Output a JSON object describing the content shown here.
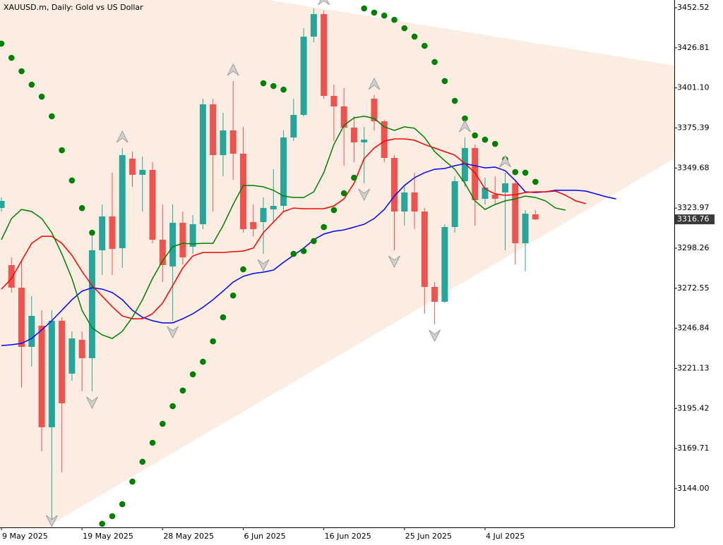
{
  "chart_data": {
    "type": "candlestick",
    "title": "XAUUSD.m, Daily:  Gold vs US Dollar",
    "categories": [
      "9 May 2025",
      null,
      null,
      null,
      null,
      null,
      null,
      null,
      "19 May 2025",
      null,
      null,
      null,
      null,
      null,
      null,
      null,
      "28 May 2025",
      null,
      null,
      null,
      null,
      null,
      null,
      null,
      "6 Jun 2025",
      null,
      null,
      null,
      null,
      null,
      null,
      null,
      "16 Jun 2025",
      null,
      null,
      null,
      null,
      null,
      null,
      null,
      "25 Jun 2025",
      null,
      null,
      null,
      null,
      null,
      null,
      null,
      "4 Jul 2025",
      null,
      null,
      null,
      null,
      null,
      null,
      null,
      null,
      null,
      null,
      null,
      null,
      null
    ],
    "open": [
      3324.05,
      3287.41,
      3272.94,
      3234.94,
      3248.51,
      3183.37,
      3251.68,
      3217.75,
      3239.46,
      3227.7,
      3296.91,
      3318.63,
      3298.27,
      3355.72,
      3345.31,
      3348.48,
      3303.7,
      3286.51,
      3314.55,
      3299.17,
      3313.65,
      3390.55,
      3357.98,
      3373.81,
      3358.89,
      3315.01,
      3315.01,
      3323.15,
      3325.41,
      3369.29,
      3383.77,
      3433.98,
      3448.45,
      3395.98,
      3389.19,
      3375.62,
      3366.12,
      3394.17,
      3379.69,
      3356.17,
      3321.79,
      3334.01,
      3321.79,
      3273.39,
      3263.89,
      3311.84,
      3341.24,
      3362.5,
      3329.93,
      3332.65,
      3334.01,
      3339.89,
      3301.44,
      3319.98,
      null,
      null,
      null,
      null,
      null,
      null,
      null,
      null
    ],
    "high": [
      3330.84,
      3292.39,
      3290.13,
      3267.5,
      3258.46,
      3258.46,
      3253.94,
      3244.89,
      3244.89,
      3305.96,
      3326.32,
      3346.67,
      3362.5,
      3360.24,
      3357.08,
      3353.46,
      3326.32,
      3326.32,
      3321.79,
      3319.53,
      3394.17,
      3394.17,
      3385.12,
      3405.48,
      3376.08,
      3326.32,
      3330.84,
      3348.93,
      3373.81,
      3394.17,
      3439.41,
      3452.07,
      3450.71,
      3403.22,
      3400.95,
      3382.86,
      3376.08,
      3396.43,
      3380.6,
      3357.98,
      3337.62,
      3346.67,
      3324.05,
      3276.56,
      3313.65,
      3344.41,
      3369.29,
      3364.77,
      3343.5,
      3344.41,
      3346.67,
      3342.15,
      3322.7,
      3322.7,
      null,
      null,
      null,
      null,
      null,
      null,
      null,
      null
    ],
    "low": [
      3321.79,
      3269.77,
      3208.7,
      3222.27,
      3167.99,
      3120.49,
      3154.42,
      3213.23,
      3206.44,
      3206.44,
      3281.08,
      3281.08,
      3285.6,
      3337.62,
      3321.79,
      3301.44,
      3276.56,
      3251.68,
      3287.86,
      3294.65,
      3310.48,
      3321.79,
      3344.41,
      3342.15,
      3308.22,
      3305.96,
      3294.65,
      3315.01,
      3321.79,
      3367.03,
      3382.86,
      3430.36,
      3394.17,
      3367.03,
      3351.2,
      3353.46,
      3339.89,
      3373.81,
      3353.46,
      3296.91,
      3312.74,
      3310.48,
      3256.2,
      3249.41,
      3262.99,
      3308.22,
      3337.62,
      3312.74,
      3326.32,
      3326.32,
      3296.91,
      3287.86,
      3283.34,
      3316.36,
      null,
      null,
      null,
      null,
      null,
      null,
      null,
      null
    ],
    "close": [
      3328.58,
      3272.94,
      3234.94,
      3254.84,
      3183.37,
      3251.68,
      3198.75,
      3240.37,
      3227.7,
      3296.91,
      3318.63,
      3297.82,
      3357.98,
      3345.31,
      3348.48,
      3303.7,
      3287.41,
      3314.55,
      3292.39,
      3313.65,
      3390.55,
      3357.98,
      3373.81,
      3358.89,
      3310.48,
      3310.48,
      3324.05,
      3325.41,
      3369.29,
      3383.77,
      3433.98,
      3448.45,
      3395.98,
      3389.19,
      3375.62,
      3366.12,
      3367.93,
      3379.69,
      3356.17,
      3321.79,
      3334.01,
      3321.79,
      3273.39,
      3263.89,
      3311.84,
      3341.24,
      3362.5,
      3329.03,
      3337.17,
      3329.93,
      3339.89,
      3301.44,
      3320.43,
      3316.76,
      null,
      null,
      null,
      null,
      null,
      null,
      null,
      null
    ],
    "up_color": "#26a69a",
    "down_color": "#ef5350",
    "series": [
      {
        "color": "#0000ff",
        "values": [
          3235.8,
          3236.3,
          3237.2,
          3240.3,
          3245.8,
          3251.7,
          3258.4,
          3265.2,
          3270.7,
          3272.9,
          3272.0,
          3269.8,
          3265.2,
          3258.4,
          3253.9,
          3251.7,
          3250.3,
          3250.3,
          3253.0,
          3256.2,
          3260.3,
          3265.2,
          3270.7,
          3276.5,
          3280.2,
          3282.0,
          3282.9,
          3284.2,
          3289.2,
          3293.7,
          3298.3,
          3303.7,
          3307.3,
          3309.1,
          3310.0,
          3311.8,
          3313.6,
          3317.3,
          3323.1,
          3331.7,
          3338.5,
          3343.5,
          3346.7,
          3348.9,
          3349.4,
          3351.2,
          3352.5,
          3351.2,
          3349.8,
          3350.3,
          3348.0,
          3341.7,
          3334.4,
          3334.0,
          3334.4,
          3335.4,
          3335.4,
          3335.4,
          3334.9,
          3333.1,
          3331.3,
          3329.9
        ]
      },
      {
        "color": "#ff0000",
        "values": [
          3272.0,
          3278.8,
          3290.1,
          3301.4,
          3305.9,
          3305.9,
          3301.4,
          3293.7,
          3283.3,
          3274.3,
          3267.5,
          3260.7,
          3254.8,
          3253.0,
          3253.0,
          3256.2,
          3263.0,
          3274.3,
          3285.6,
          3293.3,
          3295.5,
          3295.5,
          3295.5,
          3296.0,
          3296.4,
          3298.3,
          3308.2,
          3315.0,
          3321.8,
          3324.0,
          3323.6,
          3323.6,
          3323.6,
          3325.4,
          3329.9,
          3339.9,
          3355.7,
          3362.5,
          3367.0,
          3368.4,
          3368.4,
          3367.5,
          3364.8,
          3362.5,
          3360.2,
          3358.0,
          3352.5,
          3346.7,
          3336.3,
          3333.1,
          3332.2,
          3332.6,
          3334.0,
          3334.4,
          3334.4,
          3334.9,
          3332.2,
          3328.6,
          3326.8,
          null,
          null,
          null
        ]
      },
      {
        "color": "#008000",
        "values": [
          3303.7,
          3317.3,
          3323.1,
          3321.8,
          3317.3,
          3308.2,
          3294.6,
          3278.8,
          3258.4,
          3247.1,
          3242.6,
          3240.3,
          3244.9,
          3253.9,
          3265.2,
          3278.8,
          3290.1,
          3299.2,
          3301.4,
          3301.0,
          3301.4,
          3301.4,
          3312.7,
          3326.3,
          3338.5,
          3338.5,
          3337.6,
          3335.4,
          3331.7,
          3330.8,
          3330.8,
          3334.4,
          3346.7,
          3364.8,
          3377.0,
          3381.9,
          3382.9,
          3381.5,
          3376.1,
          3373.8,
          3376.1,
          3375.2,
          3369.3,
          3360.2,
          3354.4,
          3348.9,
          3339.9,
          3328.6,
          3323.1,
          3326.3,
          3328.6,
          3329.9,
          3331.7,
          3330.8,
          3328.6,
          3324.0,
          3322.7,
          null,
          null,
          null,
          null,
          null
        ]
      }
    ],
    "sar": {
      "color": "#008000",
      "values": [
        3429.5,
        3420.4,
        3411.8,
        3403.2,
        3395.5,
        3382.9,
        3361.1,
        3341.7,
        3324.0,
        3308.2,
        3121.4,
        3126.3,
        3134.0,
        3148.5,
        3161.2,
        3173.4,
        3185.6,
        3196.9,
        3206.9,
        3217.3,
        3225.4,
        3238.5,
        3253.9,
        3267.9,
        3284.7,
        null,
        3404.1,
        3402.3,
        3400.0,
        3294.6,
        3296.4,
        3302.8,
        3311.8,
        3322.7,
        3333.5,
        3343.5,
        3452.1,
        3449.4,
        3447.5,
        3444.8,
        3439.4,
        3434.0,
        3428.1,
        3417.7,
        3405.5,
        3392.8,
        3381.5,
        3370.6,
        3367.9,
        3365.2,
        3355.3,
        3347.1,
        3346.7,
        3340.8,
        null,
        null,
        null,
        null,
        null,
        null,
        null,
        null
      ]
    },
    "fractal_color": "#a0a0a0",
    "fractals_up": [
      null,
      null,
      null,
      null,
      null,
      null,
      null,
      null,
      null,
      null,
      null,
      null,
      3362.5,
      null,
      null,
      null,
      null,
      null,
      null,
      null,
      null,
      null,
      null,
      3405.48,
      null,
      null,
      null,
      null,
      null,
      null,
      null,
      null,
      3450.71,
      null,
      null,
      null,
      null,
      3396.43,
      null,
      null,
      null,
      null,
      null,
      null,
      null,
      null,
      3369.29,
      null,
      null,
      null,
      3346.67,
      null,
      null,
      null,
      null,
      null,
      null,
      null,
      null,
      null,
      null,
      null
    ],
    "fractals_down": [
      null,
      null,
      null,
      null,
      null,
      3120.49,
      null,
      null,
      null,
      3206.44,
      null,
      null,
      null,
      null,
      null,
      null,
      null,
      3251.68,
      null,
      null,
      null,
      null,
      null,
      null,
      null,
      null,
      3294.65,
      null,
      null,
      null,
      null,
      null,
      null,
      null,
      null,
      null,
      3339.89,
      null,
      null,
      3296.91,
      null,
      null,
      null,
      3249.41,
      null,
      null,
      null,
      null,
      null,
      null,
      null,
      null,
      null,
      null,
      null,
      null,
      null,
      null,
      null,
      null,
      null,
      null
    ],
    "last_price": 3316.76,
    "ylim": [
      3119.12,
      3457.5
    ],
    "yticks": [
      3452.52,
      3426.81,
      {
        "value": 3401.1,
        "label": "3401.10"
      },
      3375.39,
      3349.68,
      3323.97,
      3298.26,
      3272.55,
      3246.84,
      3221.13,
      3195.42,
      3169.71,
      {
        "value": 3144,
        "label": "3144.00"
      }
    ]
  }
}
